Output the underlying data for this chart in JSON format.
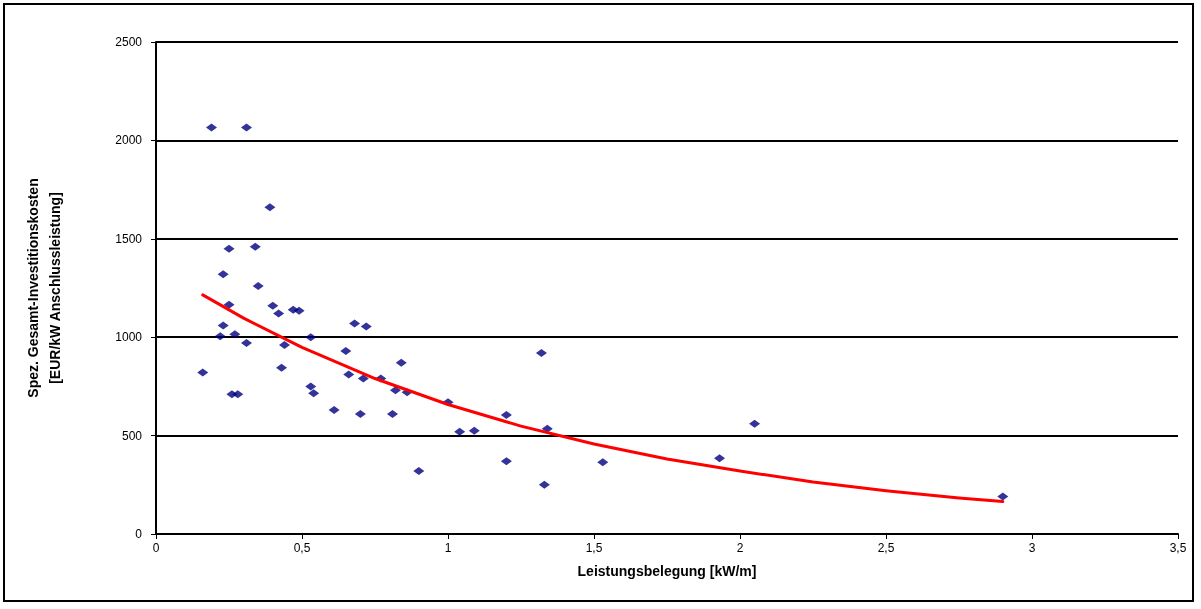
{
  "chart_data": {
    "type": "scatter",
    "xlabel": "Leistungsbelegung [kW/m]",
    "ylabel": "Spez. Gesamt-Investitionskosten\n[EUR/kW Anschlussleistung]",
    "xlim": [
      0,
      3.5
    ],
    "xticks": [
      0,
      {
        "value": 0.5,
        "label": "0,5"
      },
      1,
      {
        "value": 1.5,
        "label": "1,5"
      },
      2,
      {
        "value": 2.5,
        "label": "2,5"
      },
      3,
      {
        "value": 3.5,
        "label": "3,5"
      }
    ],
    "ylim": [
      0,
      2500
    ],
    "yticks": [
      0,
      500,
      1000,
      1500,
      2000,
      2500
    ],
    "grid": "y",
    "marker": "diamond",
    "series": [
      {
        "color": "#000080",
        "x": [
          0.19,
          0.31,
          0.39,
          0.34,
          0.25,
          0.23,
          0.35,
          0.25,
          0.4,
          0.42,
          0.49,
          0.47,
          0.68,
          0.72,
          0.23,
          0.22,
          0.27,
          0.31,
          0.53,
          0.44,
          0.65,
          0.84,
          0.66,
          0.77,
          0.71,
          0.16,
          0.43,
          0.53,
          0.54,
          0.26,
          0.28,
          0.82,
          0.86,
          0.61,
          0.7,
          0.81,
          1.0,
          1.04,
          1.09,
          1.2,
          1.2,
          1.32,
          1.34,
          1.33,
          1.53,
          1.93,
          2.05,
          0.9,
          2.9
        ],
        "values": [
          2065,
          2065,
          1660,
          1460,
          1450,
          1320,
          1260,
          1165,
          1160,
          1120,
          1135,
          1140,
          1070,
          1055,
          1060,
          1005,
          1015,
          970,
          1000,
          960,
          930,
          870,
          810,
          790,
          790,
          820,
          845,
          750,
          715,
          710,
          710,
          730,
          720,
          630,
          610,
          610,
          670,
          520,
          525,
          605,
          370,
          920,
          535,
          250,
          365,
          385,
          560,
          320,
          190
        ]
      },
      {
        "type": "line",
        "marker": "none",
        "color": "#ff0000",
        "x": [
          0.16,
          0.3,
          0.5,
          0.75,
          1,
          1.25,
          1.5,
          1.75,
          2,
          2.25,
          2.5,
          2.75,
          2.9
        ],
        "values": [
          1215,
          1097,
          948,
          790,
          658,
          548,
          457,
          381,
          320,
          264,
          220,
          183,
          165
        ]
      }
    ]
  }
}
